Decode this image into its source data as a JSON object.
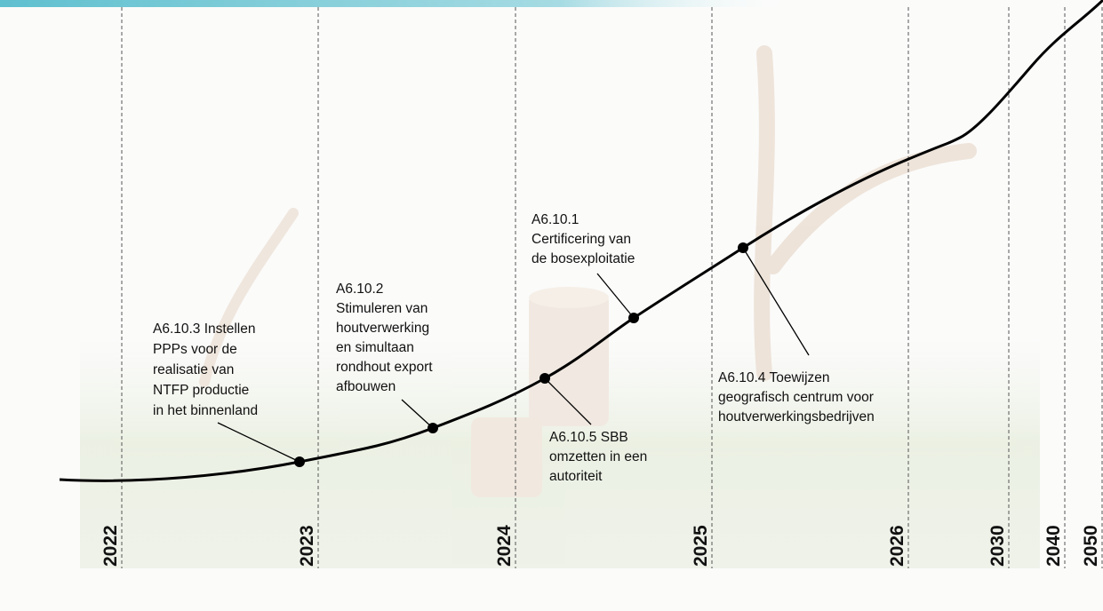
{
  "years": [
    "2022",
    "2023",
    "2024",
    "2025",
    "2026",
    "2030",
    "2040",
    "2050"
  ],
  "milestones": [
    {
      "lines": [
        "A6.10.3 Instellen",
        "PPPs voor de",
        "realisatie van",
        "NTFP productie",
        "in het binnenland"
      ]
    },
    {
      "lines": [
        "A6.10.2",
        "Stimuleren van",
        "houtverwerking",
        "en simultaan",
        "rondhout export",
        "afbouwen"
      ]
    },
    {
      "lines": [
        "A6.10.5 SBB",
        "omzetten in een",
        "autoriteit"
      ]
    },
    {
      "lines": [
        "A6.10.1",
        "Certificering van",
        "de bosexploitatie"
      ]
    },
    {
      "lines": [
        "A6.10.4 Toewijzen",
        "geografisch centrum voor",
        "houtverwerkingsbedrijven"
      ]
    }
  ]
}
